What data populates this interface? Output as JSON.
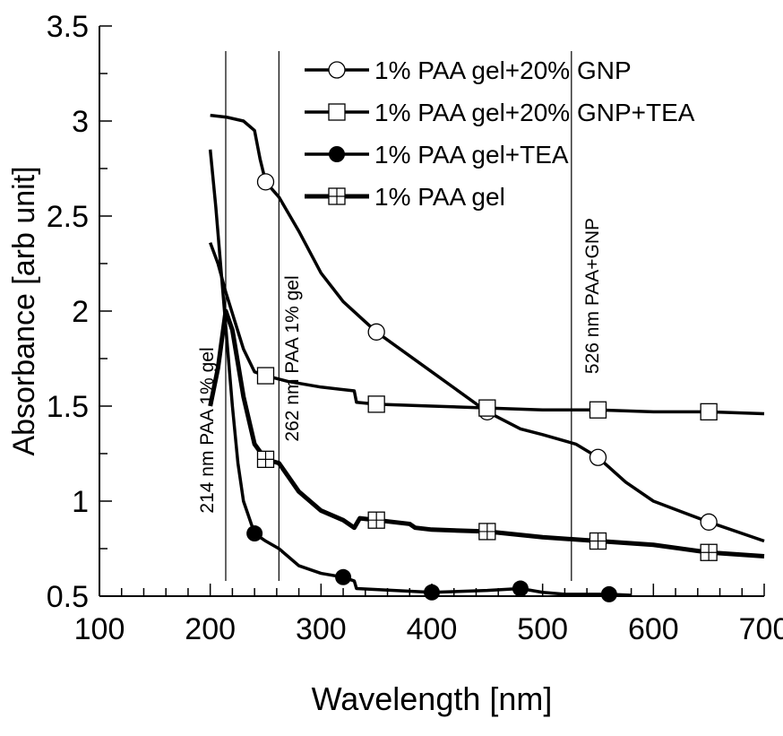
{
  "chart_data": {
    "type": "line",
    "title": "",
    "xlabel": "Wavelength [nm]",
    "ylabel": "Absorbance [arb unit]",
    "xlim": [
      100,
      700
    ],
    "ylim": [
      0.5,
      3.5
    ],
    "x_ticks": [
      "100",
      "200",
      "300",
      "400",
      "500",
      "600",
      "700"
    ],
    "y_ticks": [
      "0.5",
      "1",
      "1.5",
      "2",
      "2.5",
      "3",
      "3.5"
    ],
    "grid": false,
    "legend_position": "top-center",
    "series": [
      {
        "name": "1% PAA gel+20% GNP",
        "marker": "open-circle",
        "line_width": "normal",
        "x": [
          200,
          215,
          230,
          240,
          245,
          250,
          262,
          280,
          300,
          320,
          350,
          400,
          450,
          480,
          500,
          530,
          550,
          575,
          600,
          650,
          700
        ],
        "y": [
          3.03,
          3.02,
          3.0,
          2.95,
          2.8,
          2.68,
          2.6,
          2.42,
          2.2,
          2.05,
          1.89,
          1.68,
          1.47,
          1.38,
          1.35,
          1.3,
          1.23,
          1.1,
          1.0,
          0.89,
          0.79
        ],
        "marker_x": [
          250,
          350,
          450,
          550,
          650
        ]
      },
      {
        "name": "1% PAA gel+20% GNP+TEA",
        "marker": "open-square",
        "line_width": "normal",
        "x": [
          200,
          207,
          214,
          222,
          230,
          240,
          250,
          270,
          300,
          330,
          332,
          350,
          400,
          450,
          500,
          550,
          600,
          650,
          700
        ],
        "y": [
          2.36,
          2.25,
          2.1,
          1.95,
          1.8,
          1.68,
          1.66,
          1.63,
          1.6,
          1.58,
          1.52,
          1.51,
          1.5,
          1.49,
          1.48,
          1.48,
          1.47,
          1.47,
          1.46
        ],
        "marker_x": [
          250,
          350,
          450,
          550,
          650
        ]
      },
      {
        "name": "1% PAA gel+TEA",
        "marker": "filled-circle",
        "line_width": "normal",
        "x": [
          200,
          205,
          210,
          215,
          220,
          225,
          230,
          240,
          250,
          262,
          280,
          300,
          320,
          330,
          332,
          350,
          400,
          450,
          480,
          500,
          520,
          560,
          580
        ],
        "y": [
          2.85,
          2.55,
          2.2,
          1.85,
          1.5,
          1.2,
          1.0,
          0.83,
          0.79,
          0.75,
          0.66,
          0.62,
          0.6,
          0.58,
          0.54,
          0.535,
          0.52,
          0.53,
          0.54,
          0.52,
          0.51,
          0.51,
          0.505
        ],
        "marker_x": [
          240,
          320,
          400,
          480,
          560
        ]
      },
      {
        "name": "1% PAA gel",
        "marker": "grid-square",
        "line_width": "thick",
        "x": [
          200,
          207,
          214,
          220,
          230,
          240,
          250,
          262,
          280,
          300,
          320,
          330,
          335,
          350,
          380,
          385,
          400,
          450,
          500,
          550,
          600,
          650,
          700
        ],
        "y": [
          1.5,
          1.7,
          2.0,
          1.9,
          1.55,
          1.3,
          1.22,
          1.2,
          1.05,
          0.95,
          0.9,
          0.86,
          0.91,
          0.9,
          0.88,
          0.86,
          0.85,
          0.84,
          0.81,
          0.79,
          0.77,
          0.73,
          0.71
        ],
        "marker_x": [
          250,
          350,
          450,
          550,
          650
        ]
      }
    ],
    "annotations": [
      {
        "x": 214,
        "text": "214 nm PAA 1% gel"
      },
      {
        "x": 262,
        "text": "262 nm PAA 1% gel"
      },
      {
        "x": 526,
        "text": "526 nm PAA+GNP"
      }
    ]
  }
}
